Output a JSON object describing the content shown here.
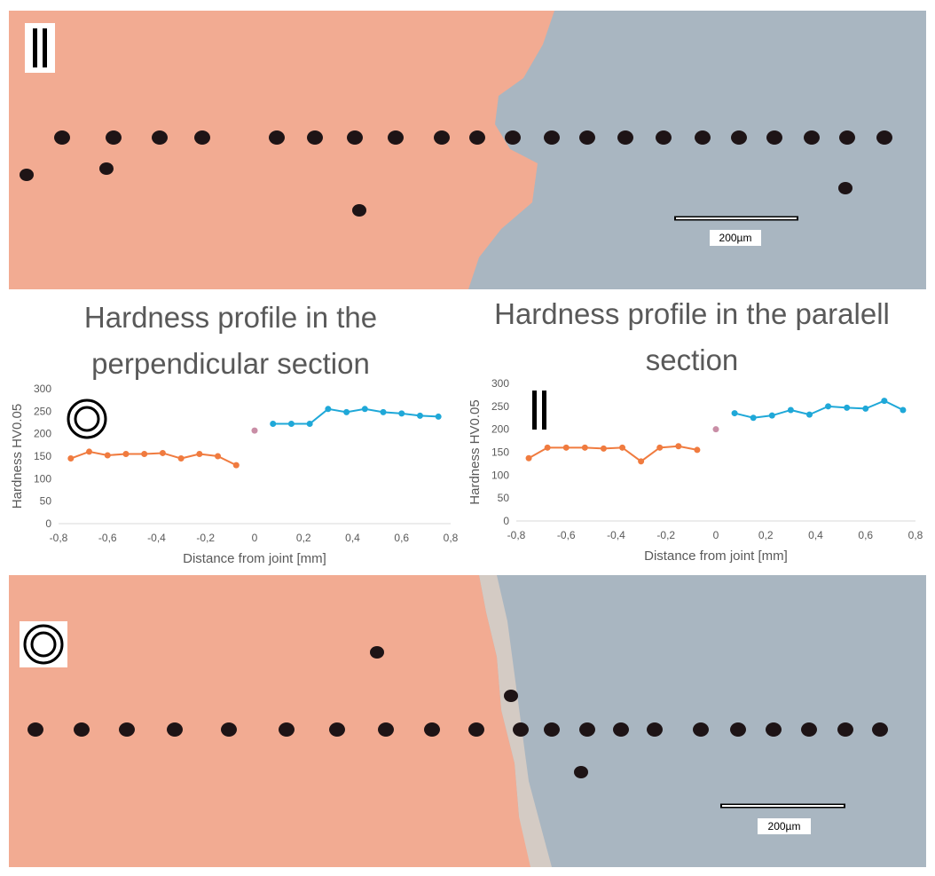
{
  "chart_data": [
    {
      "type": "line",
      "title": "Hardness profile in the perpendicular section",
      "xlabel": "Distance from joint [mm]",
      "ylabel": "Hardness HV0.05",
      "xlim": [
        -0.8,
        0.8
      ],
      "ylim": [
        0,
        300
      ],
      "xticks": [
        {
          "value": -0.8,
          "label": "-0,8"
        },
        {
          "value": -0.6,
          "label": "-0,6"
        },
        {
          "value": -0.4,
          "label": "-0,4"
        },
        {
          "value": -0.2,
          "label": "-0,2"
        },
        0,
        {
          "value": 0.2,
          "label": "0,2"
        },
        {
          "value": 0.4,
          "label": "0,4"
        },
        {
          "value": 0.6,
          "label": "0,6"
        },
        {
          "value": 0.8,
          "label": "0,8"
        }
      ],
      "yticks": [
        0,
        50,
        100,
        150,
        200,
        250,
        300
      ],
      "grid": false,
      "series": [
        {
          "color": "#f07b3f",
          "x": [
            -0.75,
            -0.675,
            -0.6,
            -0.525,
            -0.45,
            -0.375,
            -0.3,
            -0.225,
            -0.15,
            -0.075
          ],
          "values": [
            145,
            160,
            152,
            155,
            155,
            157,
            145,
            155,
            150,
            130
          ]
        },
        {
          "color": "#c98ea6",
          "x": [
            0
          ],
          "values": [
            207
          ]
        },
        {
          "color": "#1fa8d8",
          "x": [
            0.075,
            0.15,
            0.225,
            0.3,
            0.375,
            0.45,
            0.525,
            0.6,
            0.675,
            0.75
          ],
          "values": [
            222,
            222,
            222,
            255,
            248,
            255,
            248,
            245,
            240,
            238
          ]
        }
      ]
    },
    {
      "type": "line",
      "title": "Hardness profile in the paralell section",
      "xlabel": "Distance from joint [mm]",
      "ylabel": "Hardness HV0.05",
      "xlim": [
        -0.8,
        0.8
      ],
      "ylim": [
        0,
        300
      ],
      "xticks": [
        {
          "value": -0.8,
          "label": "-0,8"
        },
        {
          "value": -0.6,
          "label": "-0,6"
        },
        {
          "value": -0.4,
          "label": "-0,4"
        },
        {
          "value": -0.2,
          "label": "-0,2"
        },
        0,
        {
          "value": 0.2,
          "label": "0,2"
        },
        {
          "value": 0.4,
          "label": "0,4"
        },
        {
          "value": 0.6,
          "label": "0,6"
        },
        {
          "value": 0.8,
          "label": "0,8"
        }
      ],
      "yticks": [
        0,
        50,
        100,
        150,
        200,
        250,
        300
      ],
      "grid": false,
      "series": [
        {
          "color": "#f07b3f",
          "x": [
            -0.75,
            -0.675,
            -0.6,
            -0.525,
            -0.45,
            -0.375,
            -0.3,
            -0.225,
            -0.15,
            -0.075
          ],
          "values": [
            137,
            160,
            160,
            160,
            158,
            160,
            130,
            160,
            163,
            155
          ]
        },
        {
          "color": "#c98ea6",
          "x": [
            0
          ],
          "values": [
            200
          ]
        },
        {
          "color": "#1fa8d8",
          "x": [
            0.075,
            0.15,
            0.225,
            0.3,
            0.375,
            0.45,
            0.525,
            0.6,
            0.675,
            0.75
          ],
          "values": [
            235,
            225,
            230,
            242,
            232,
            250,
            247,
            245,
            262,
            242
          ]
        }
      ]
    }
  ],
  "micrographs": [
    {
      "scale_bar": "200µm"
    },
    {
      "scale_bar": "200µm"
    }
  ]
}
